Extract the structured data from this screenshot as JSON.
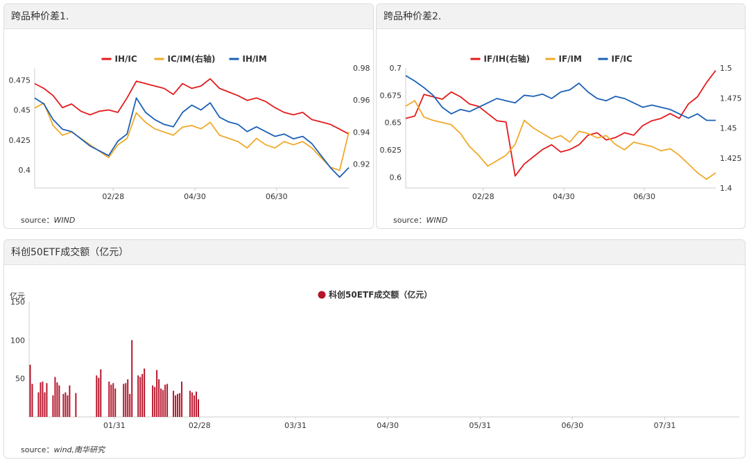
{
  "panels": {
    "p1": {
      "title": "跨品种价差1.",
      "source_label": "source：",
      "source_value": "WIND"
    },
    "p2": {
      "title": "跨品种价差2.",
      "source_label": "source：",
      "source_value": "WIND"
    },
    "p3": {
      "title": "科创50ETF成交额（亿元）",
      "source_label": "source：",
      "source_value": "wind,南华研究"
    }
  },
  "colors": {
    "red": "#e31a1c",
    "orange": "#f0a92a",
    "blue": "#1a5fb4",
    "bar": "#b5152b"
  },
  "chart_data": [
    {
      "type": "line",
      "title": "",
      "x_ticks": [
        "02/28",
        "04/30",
        "06/30"
      ],
      "y_left": {
        "ticks": [
          "0.475",
          "0.45",
          "0.425",
          "0.4"
        ],
        "lim": [
          0.385,
          0.485
        ]
      },
      "y_right": {
        "ticks": [
          "0.98",
          "0.96",
          "0.94",
          "0.92"
        ],
        "lim": [
          0.905,
          0.98
        ]
      },
      "series": [
        {
          "name": "IH/IC",
          "axis": "left",
          "color": "#e31a1c",
          "values": [
            0.472,
            0.468,
            0.462,
            0.452,
            0.455,
            0.449,
            0.446,
            0.449,
            0.45,
            0.448,
            0.46,
            0.474,
            0.472,
            0.47,
            0.468,
            0.463,
            0.472,
            0.468,
            0.47,
            0.476,
            0.468,
            0.465,
            0.462,
            0.458,
            0.46,
            0.457,
            0.452,
            0.448,
            0.446,
            0.448,
            0.442,
            0.44,
            0.438,
            0.434,
            0.43
          ]
        },
        {
          "name": "IC/IM(右轴)",
          "axis": "right",
          "color": "#f0a92a",
          "values": [
            0.955,
            0.958,
            0.944,
            0.938,
            0.94,
            0.936,
            0.932,
            0.928,
            0.924,
            0.932,
            0.936,
            0.952,
            0.946,
            0.942,
            0.94,
            0.938,
            0.943,
            0.944,
            0.942,
            0.946,
            0.938,
            0.936,
            0.934,
            0.93,
            0.936,
            0.932,
            0.93,
            0.934,
            0.932,
            0.934,
            0.93,
            0.924,
            0.918,
            0.916,
            0.94
          ]
        },
        {
          "name": "IH/IM",
          "axis": "left",
          "color": "#1a5fb4",
          "values": [
            0.46,
            0.455,
            0.442,
            0.434,
            0.432,
            0.426,
            0.42,
            0.416,
            0.412,
            0.424,
            0.43,
            0.46,
            0.448,
            0.442,
            0.438,
            0.436,
            0.448,
            0.454,
            0.45,
            0.456,
            0.444,
            0.44,
            0.438,
            0.432,
            0.436,
            0.432,
            0.428,
            0.43,
            0.426,
            0.428,
            0.422,
            0.412,
            0.402,
            0.394,
            0.402
          ]
        }
      ]
    },
    {
      "type": "line",
      "title": "",
      "x_ticks": [
        "02/28",
        "04/30",
        "06/30"
      ],
      "y_left": {
        "ticks": [
          "0.7",
          "0.675",
          "0.65",
          "0.625",
          "0.6"
        ],
        "lim": [
          0.59,
          0.7
        ]
      },
      "y_right": {
        "ticks": [
          "1.5",
          "1.475",
          "1.45",
          "1.425",
          "1.4"
        ],
        "lim": [
          1.4,
          1.5
        ]
      },
      "series": [
        {
          "name": "IF/IH(右轴)",
          "axis": "right",
          "color": "#e31a1c",
          "values": [
            1.458,
            1.46,
            1.478,
            1.476,
            1.474,
            1.48,
            1.476,
            1.47,
            1.468,
            1.462,
            1.456,
            1.455,
            1.41,
            1.42,
            1.426,
            1.432,
            1.436,
            1.43,
            1.432,
            1.436,
            1.444,
            1.446,
            1.44,
            1.442,
            1.446,
            1.444,
            1.452,
            1.456,
            1.458,
            1.462,
            1.458,
            1.47,
            1.476,
            1.488,
            1.498
          ]
        },
        {
          "name": "IF/IM",
          "axis": "left",
          "color": "#f0a92a",
          "values": [
            0.665,
            0.67,
            0.655,
            0.652,
            0.65,
            0.648,
            0.64,
            0.628,
            0.62,
            0.61,
            0.615,
            0.62,
            0.63,
            0.652,
            0.645,
            0.64,
            0.635,
            0.638,
            0.632,
            0.642,
            0.64,
            0.636,
            0.638,
            0.63,
            0.625,
            0.632,
            0.63,
            0.628,
            0.624,
            0.626,
            0.62,
            0.612,
            0.604,
            0.598,
            0.604
          ]
        },
        {
          "name": "IF/IC",
          "axis": "left",
          "color": "#1a5fb4",
          "values": [
            0.693,
            0.688,
            0.682,
            0.675,
            0.664,
            0.658,
            0.662,
            0.66,
            0.664,
            0.668,
            0.672,
            0.67,
            0.668,
            0.675,
            0.674,
            0.676,
            0.672,
            0.678,
            0.68,
            0.686,
            0.678,
            0.672,
            0.67,
            0.674,
            0.672,
            0.668,
            0.664,
            0.666,
            0.664,
            0.662,
            0.658,
            0.654,
            0.658,
            0.652,
            0.652
          ]
        }
      ]
    },
    {
      "type": "bar",
      "title": "",
      "legend": "科创50ETF成交额（亿元）",
      "y_unit": "亿元",
      "y_ticks": [
        "150",
        "100",
        "50"
      ],
      "ylim": [
        0,
        150
      ],
      "x_ticks": [
        "01/31",
        "02/28",
        "03/31",
        "04/30",
        "05/31",
        "06/30",
        "07/31"
      ],
      "values": [
        68,
        43,
        0,
        0,
        32,
        45,
        46,
        32,
        44,
        0,
        0,
        28,
        52,
        45,
        41,
        0,
        30,
        32,
        28,
        41,
        0,
        0,
        31,
        0,
        0,
        0,
        0,
        0,
        0,
        0,
        0,
        0,
        54,
        51,
        62,
        0,
        0,
        0,
        46,
        42,
        44,
        37,
        0,
        0,
        0,
        43,
        44,
        49,
        30,
        100,
        0,
        0,
        54,
        52,
        56,
        63,
        0,
        0,
        0,
        41,
        39,
        61,
        49,
        37,
        35,
        42,
        43,
        0,
        0,
        34,
        28,
        30,
        31,
        46,
        0,
        0,
        0,
        34,
        32,
        28,
        33,
        23,
        0,
        0,
        0,
        0,
        0,
        0,
        0,
        0,
        0,
        0,
        0,
        0,
        0,
        0,
        0,
        0,
        0,
        0,
        0,
        0,
        0,
        0,
        0,
        0,
        0,
        0,
        0,
        0,
        0,
        0,
        0,
        0,
        0,
        0,
        0,
        0,
        0,
        0,
        0,
        0,
        0,
        0,
        0,
        0,
        0,
        0,
        0,
        0,
        0,
        0,
        0,
        0,
        0,
        0,
        0,
        0,
        0,
        0,
        0,
        0,
        0,
        0,
        0,
        0,
        0,
        0,
        0,
        0,
        0,
        0,
        0,
        0,
        0,
        0,
        0,
        0,
        0,
        0,
        0,
        0,
        0,
        0,
        0,
        0,
        0,
        0,
        0,
        0,
        0,
        0,
        0,
        0,
        0,
        0,
        0,
        0,
        0,
        0,
        0,
        0,
        0,
        0,
        0,
        0,
        0,
        0,
        0,
        0,
        0,
        0,
        0,
        0,
        0,
        0,
        0,
        0,
        0,
        0,
        0,
        0,
        0,
        0,
        0,
        0,
        0,
        0,
        0,
        0,
        0,
        0,
        0,
        0,
        0,
        0,
        0,
        0,
        0,
        0,
        0,
        0,
        0,
        0,
        0,
        0,
        0,
        0,
        0,
        0,
        0,
        0,
        0,
        0,
        0,
        0,
        0,
        0,
        0,
        0,
        0,
        0,
        0,
        0,
        0,
        0,
        0,
        0,
        0,
        0,
        0,
        0,
        0,
        0,
        0,
        0,
        0,
        0,
        0,
        0,
        0,
        0,
        0,
        0,
        0,
        0,
        0,
        0,
        0,
        0,
        0,
        0,
        0,
        0,
        0,
        0,
        0,
        0,
        0,
        0,
        0,
        0,
        0,
        0,
        0,
        0,
        0,
        0,
        0,
        0,
        0,
        0,
        0,
        0,
        0,
        0,
        0,
        0,
        0,
        0,
        0,
        0,
        0,
        0,
        0,
        0,
        0,
        0,
        0,
        0,
        0,
        0,
        0,
        0,
        0,
        0,
        0,
        0,
        0,
        0,
        0,
        0,
        0,
        0,
        0,
        0,
        0,
        0,
        0,
        0,
        0,
        0,
        0,
        0,
        0,
        0,
        0,
        0,
        0,
        0,
        0,
        0
      ]
    }
  ]
}
